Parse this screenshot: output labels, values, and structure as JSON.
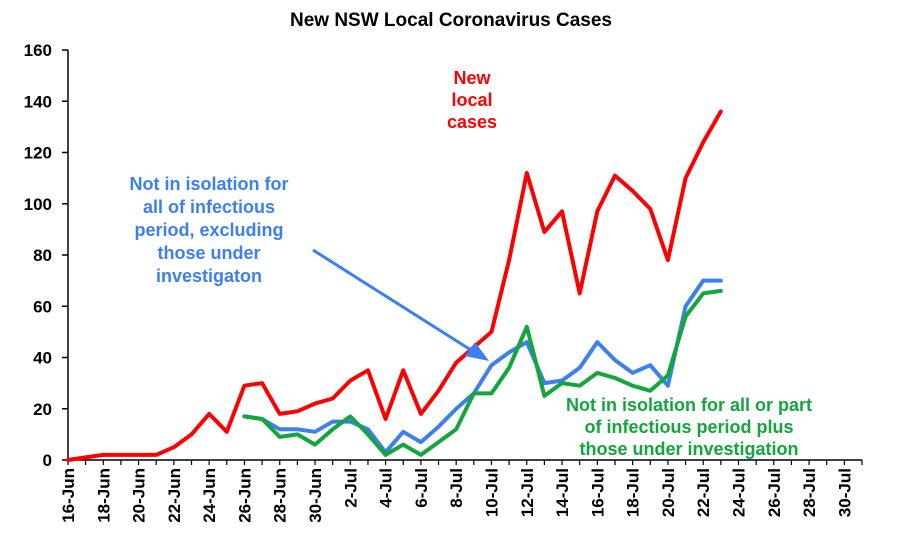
{
  "chart_data": {
    "type": "line",
    "title": "New NSW Local Coronavirus Cases",
    "xlabel": "",
    "ylabel": "",
    "ylim": [
      0,
      160
    ],
    "yticks": [
      0,
      20,
      40,
      60,
      80,
      100,
      120,
      140,
      160
    ],
    "xlim": [
      "2021-06-16",
      "2021-07-31"
    ],
    "xtick_labels": [
      "16-Jun",
      "18-Jun",
      "20-Jun",
      "22-Jun",
      "24-Jun",
      "26-Jun",
      "28-Jun",
      "30-Jun",
      "2-Jul",
      "4-Jul",
      "6-Jul",
      "8-Jul",
      "10-Jul",
      "12-Jul",
      "14-Jul",
      "16-Jul",
      "18-Jul",
      "20-Jul",
      "22-Jul",
      "24-Jul",
      "26-Jul",
      "28-Jul",
      "30-Jul"
    ],
    "grid": false,
    "legend": "none",
    "series": [
      {
        "name": "New local cases",
        "color": "#ff0000",
        "x": [
          "2021-06-16",
          "2021-06-17",
          "2021-06-18",
          "2021-06-19",
          "2021-06-20",
          "2021-06-21",
          "2021-06-22",
          "2021-06-23",
          "2021-06-24",
          "2021-06-25",
          "2021-06-26",
          "2021-06-27",
          "2021-06-28",
          "2021-06-29",
          "2021-06-30",
          "2021-07-01",
          "2021-07-02",
          "2021-07-03",
          "2021-07-04",
          "2021-07-05",
          "2021-07-06",
          "2021-07-07",
          "2021-07-08",
          "2021-07-09",
          "2021-07-10",
          "2021-07-11",
          "2021-07-12",
          "2021-07-13",
          "2021-07-14",
          "2021-07-15",
          "2021-07-16",
          "2021-07-17",
          "2021-07-18",
          "2021-07-19",
          "2021-07-20",
          "2021-07-21",
          "2021-07-22",
          "2021-07-23"
        ],
        "values": [
          0,
          1,
          2,
          2,
          2,
          2,
          5,
          10,
          18,
          11,
          29,
          30,
          18,
          19,
          22,
          24,
          31,
          35,
          16,
          35,
          18,
          27,
          38,
          44,
          50,
          78,
          112,
          89,
          97,
          65,
          97,
          111,
          105,
          98,
          78,
          110,
          124,
          136
        ]
      },
      {
        "name": "Not in isolation for all of infectious period, excluding those under investigaton",
        "color": "#3b7ff0",
        "x": [
          "2021-06-26",
          "2021-06-27",
          "2021-06-28",
          "2021-06-29",
          "2021-06-30",
          "2021-07-01",
          "2021-07-02",
          "2021-07-03",
          "2021-07-04",
          "2021-07-05",
          "2021-07-06",
          "2021-07-07",
          "2021-07-08",
          "2021-07-09",
          "2021-07-10",
          "2021-07-11",
          "2021-07-12",
          "2021-07-13",
          "2021-07-14",
          "2021-07-15",
          "2021-07-16",
          "2021-07-17",
          "2021-07-18",
          "2021-07-19",
          "2021-07-20",
          "2021-07-21",
          "2021-07-22",
          "2021-07-23"
        ],
        "values": [
          17,
          16,
          12,
          12,
          11,
          15,
          15,
          12,
          3,
          11,
          7,
          13,
          20,
          26,
          37,
          42,
          46,
          30,
          31,
          36,
          46,
          39,
          34,
          37,
          29,
          60,
          70,
          70
        ]
      },
      {
        "name": "Not in isolation for all or part of infectious period plus those under investigation",
        "color": "#12a63c",
        "x": [
          "2021-06-26",
          "2021-06-27",
          "2021-06-28",
          "2021-06-29",
          "2021-06-30",
          "2021-07-01",
          "2021-07-02",
          "2021-07-03",
          "2021-07-04",
          "2021-07-05",
          "2021-07-06",
          "2021-07-07",
          "2021-07-08",
          "2021-07-09",
          "2021-07-10",
          "2021-07-11",
          "2021-07-12",
          "2021-07-13",
          "2021-07-14",
          "2021-07-15",
          "2021-07-16",
          "2021-07-17",
          "2021-07-18",
          "2021-07-19",
          "2021-07-20",
          "2021-07-21",
          "2021-07-22",
          "2021-07-23"
        ],
        "values": [
          17,
          16,
          9,
          10,
          6,
          12,
          17,
          10,
          2,
          6,
          2,
          7,
          12,
          26,
          26,
          36,
          52,
          25,
          30,
          29,
          34,
          32,
          29,
          27,
          33,
          56,
          65,
          66
        ]
      }
    ],
    "annotations": [
      {
        "id": "red",
        "color": "#ff0000",
        "lines": [
          "New",
          "local",
          "cases"
        ]
      },
      {
        "id": "blue",
        "color": "#3b7ff0",
        "lines": [
          "Not in isolation for",
          "all of infectious",
          "period, excluding",
          "those under",
          "investigaton"
        ]
      },
      {
        "id": "green",
        "color": "#12a63c",
        "lines": [
          "Not in isolation for all or part",
          "of infectious period plus",
          "those under investigation"
        ]
      }
    ]
  }
}
